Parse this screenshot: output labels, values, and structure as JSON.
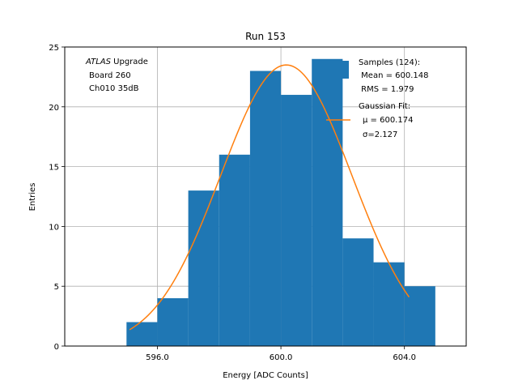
{
  "chart_data": {
    "type": "bar",
    "title": "Run 153",
    "xlabel": "Energy [ADC Counts]",
    "ylabel": "Entries",
    "xlim": [
      593,
      606
    ],
    "ylim": [
      0,
      25
    ],
    "x_ticks": [
      596,
      600,
      604
    ],
    "x_tick_labels": [
      "596.0",
      "600.0",
      "604.0"
    ],
    "y_ticks": [
      0,
      5,
      10,
      15,
      20,
      25
    ],
    "y_tick_labels": [
      "0",
      "5",
      "10",
      "15",
      "20",
      "25"
    ],
    "grid": true,
    "bar_color": "#1f77b4",
    "fit_color": "#ff7f0e",
    "histogram": {
      "bin_edges": [
        595,
        596,
        597,
        598,
        599,
        600,
        601,
        602,
        603,
        604,
        605
      ],
      "counts": [
        2,
        4,
        13,
        16,
        23,
        21,
        24,
        9,
        7,
        5
      ]
    },
    "gaussian_fit": {
      "mu": 600.174,
      "sigma": 2.127,
      "amplitude": 23.5,
      "x_range": [
        595.1,
        604.15
      ]
    },
    "annotation_lines": [
      "ATLAS",
      " Upgrade",
      "Board 260",
      "Ch010 35dB"
    ],
    "legend": {
      "position": "top-right",
      "entries": [
        {
          "lines": [
            "Samples (124):",
            " Mean = 600.148",
            " RMS = 1.979"
          ],
          "style": "patch"
        },
        {
          "lines": [
            "Gaussian Fit:",
            "μ = 600.174",
            "σ=2.127"
          ],
          "style": "line"
        }
      ]
    }
  }
}
